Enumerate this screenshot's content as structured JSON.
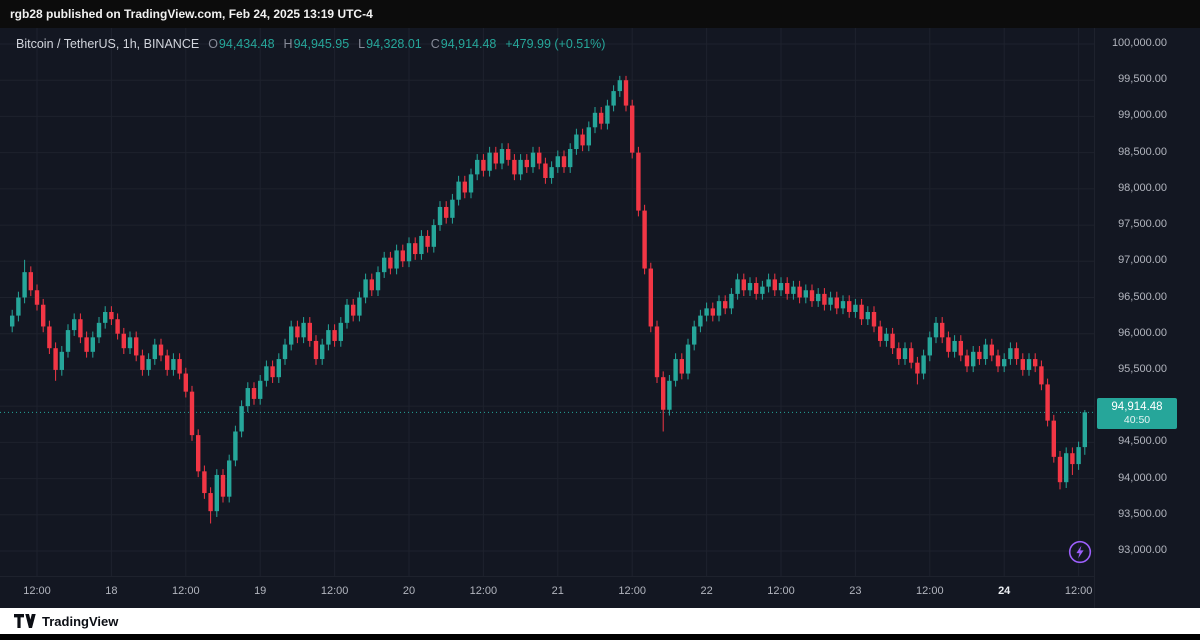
{
  "top_bar": {
    "text": "rgb28 published on TradingView.com, Feb 24, 2025 13:19 UTC-4"
  },
  "legend": {
    "title": "Bitcoin / TetherUS, 1h, BINANCE",
    "ohlc": [
      {
        "label": "O",
        "value": "94,434.48"
      },
      {
        "label": "H",
        "value": "94,945.95"
      },
      {
        "label": "L",
        "value": "94,328.01"
      },
      {
        "label": "C",
        "value": "94,914.48"
      }
    ],
    "change": "+479.99 (+0.51%)"
  },
  "price_label": {
    "price": "94,914.48",
    "countdown": "40:50"
  },
  "footer": {
    "brand": "TradingView"
  },
  "colors": {
    "up": "#26a69a",
    "down": "#f23645",
    "accent": "#26a69a",
    "bolt": "#9c5ffb",
    "grid": "#1e222d"
  },
  "chart_data": {
    "type": "candlestick",
    "title": "Bitcoin / TetherUS, 1h, BINANCE",
    "pair": "Bitcoin / TetherUS",
    "interval": "1h",
    "exchange": "BINANCE",
    "current_price": 94914.48,
    "last": {
      "o": 94434.48,
      "h": 94945.95,
      "l": 94328.01,
      "c": 94914.48,
      "change": "+479.99",
      "change_pct": "+0.51%"
    },
    "ylim": [
      92750,
      100250
    ],
    "y_ticks": [
      {
        "v": 100000,
        "label": "100,000.00"
      },
      {
        "v": 99500,
        "label": "99,500.00"
      },
      {
        "v": 99000,
        "label": "99,000.00"
      },
      {
        "v": 98500,
        "label": "98,500.00"
      },
      {
        "v": 98000,
        "label": "98,000.00"
      },
      {
        "v": 97500,
        "label": "97,500.00"
      },
      {
        "v": 97000,
        "label": "97,000.00"
      },
      {
        "v": 96500,
        "label": "96,500.00"
      },
      {
        "v": 96000,
        "label": "96,000.00"
      },
      {
        "v": 95500,
        "label": "95,500.00"
      },
      {
        "v": 95000,
        "label": "95,000.00"
      },
      {
        "v": 94500,
        "label": "94,500.00"
      },
      {
        "v": 94000,
        "label": "94,000.00"
      },
      {
        "v": 93500,
        "label": "93,500.00"
      },
      {
        "v": 93000,
        "label": "93,000.00"
      }
    ],
    "x_ticks": [
      {
        "i": 4,
        "label": "12:00",
        "bold": false
      },
      {
        "i": 16,
        "label": "18",
        "bold": false
      },
      {
        "i": 28,
        "label": "12:00",
        "bold": false
      },
      {
        "i": 40,
        "label": "19",
        "bold": false
      },
      {
        "i": 52,
        "label": "12:00",
        "bold": false
      },
      {
        "i": 64,
        "label": "20",
        "bold": false
      },
      {
        "i": 76,
        "label": "12:00",
        "bold": false
      },
      {
        "i": 88,
        "label": "21",
        "bold": false
      },
      {
        "i": 100,
        "label": "12:00",
        "bold": false
      },
      {
        "i": 112,
        "label": "22",
        "bold": false
      },
      {
        "i": 124,
        "label": "12:00",
        "bold": false
      },
      {
        "i": 136,
        "label": "23",
        "bold": false
      },
      {
        "i": 148,
        "label": "12:00",
        "bold": false
      },
      {
        "i": 160,
        "label": "24",
        "bold": true
      },
      {
        "i": 172,
        "label": "12:00",
        "bold": false
      }
    ],
    "candles": [
      [
        96100,
        96330,
        96020,
        96250
      ],
      [
        96250,
        96580,
        96170,
        96500
      ],
      [
        96500,
        97020,
        96420,
        96850
      ],
      [
        96850,
        96930,
        96520,
        96600
      ],
      [
        96600,
        96680,
        96320,
        96400
      ],
      [
        96400,
        96480,
        96020,
        96100
      ],
      [
        96100,
        96180,
        95720,
        95800
      ],
      [
        95800,
        95880,
        95350,
        95500
      ],
      [
        95500,
        95830,
        95420,
        95750
      ],
      [
        95750,
        96130,
        95670,
        96050
      ],
      [
        96050,
        96280,
        95970,
        96200
      ],
      [
        96200,
        96280,
        95870,
        95950
      ],
      [
        95950,
        96030,
        95670,
        95750
      ],
      [
        95750,
        96030,
        95670,
        95950
      ],
      [
        95950,
        96230,
        95870,
        96150
      ],
      [
        96150,
        96380,
        96070,
        96300
      ],
      [
        96300,
        96380,
        96120,
        96200
      ],
      [
        96200,
        96280,
        95920,
        96000
      ],
      [
        96000,
        96080,
        95720,
        95800
      ],
      [
        95800,
        96030,
        95720,
        95950
      ],
      [
        95950,
        96030,
        95620,
        95700
      ],
      [
        95700,
        95780,
        95420,
        95500
      ],
      [
        95500,
        95730,
        95420,
        95650
      ],
      [
        95650,
        95930,
        95570,
        95850
      ],
      [
        95850,
        95930,
        95620,
        95700
      ],
      [
        95700,
        95780,
        95420,
        95500
      ],
      [
        95500,
        95730,
        95420,
        95650
      ],
      [
        95650,
        95730,
        95370,
        95450
      ],
      [
        95450,
        95530,
        95120,
        95200
      ],
      [
        95200,
        95280,
        94520,
        94600
      ],
      [
        94600,
        94680,
        94020,
        94100
      ],
      [
        94100,
        94180,
        93720,
        93800
      ],
      [
        93800,
        93880,
        93380,
        93550
      ],
      [
        93550,
        94130,
        93470,
        94050
      ],
      [
        94050,
        94130,
        93670,
        93750
      ],
      [
        93750,
        94330,
        93670,
        94250
      ],
      [
        94250,
        94730,
        94170,
        94650
      ],
      [
        94650,
        95080,
        94570,
        95000
      ],
      [
        95000,
        95330,
        94920,
        95250
      ],
      [
        95250,
        95330,
        95020,
        95100
      ],
      [
        95100,
        95430,
        95020,
        95350
      ],
      [
        95350,
        95630,
        95270,
        95550
      ],
      [
        95550,
        95630,
        95320,
        95400
      ],
      [
        95400,
        95730,
        95320,
        95650
      ],
      [
        95650,
        95930,
        95570,
        95850
      ],
      [
        95850,
        96180,
        95770,
        96100
      ],
      [
        96100,
        96180,
        95870,
        95950
      ],
      [
        95950,
        96230,
        95870,
        96150
      ],
      [
        96150,
        96230,
        95820,
        95900
      ],
      [
        95900,
        95980,
        95570,
        95650
      ],
      [
        95650,
        95930,
        95570,
        95850
      ],
      [
        95850,
        96130,
        95770,
        96050
      ],
      [
        96050,
        96130,
        95820,
        95900
      ],
      [
        95900,
        96230,
        95820,
        96150
      ],
      [
        96150,
        96480,
        96070,
        96400
      ],
      [
        96400,
        96480,
        96170,
        96250
      ],
      [
        96250,
        96580,
        96170,
        96500
      ],
      [
        96500,
        96830,
        96420,
        96750
      ],
      [
        96750,
        96830,
        96520,
        96600
      ],
      [
        96600,
        96930,
        96520,
        96850
      ],
      [
        96850,
        97130,
        96770,
        97050
      ],
      [
        97050,
        97130,
        96820,
        96900
      ],
      [
        96900,
        97230,
        96820,
        97150
      ],
      [
        97150,
        97230,
        96920,
        97000
      ],
      [
        97000,
        97330,
        96920,
        97250
      ],
      [
        97250,
        97330,
        97020,
        97100
      ],
      [
        97100,
        97430,
        97020,
        97350
      ],
      [
        97350,
        97430,
        97120,
        97200
      ],
      [
        97200,
        97580,
        97120,
        97500
      ],
      [
        97500,
        97830,
        97420,
        97750
      ],
      [
        97750,
        97830,
        97520,
        97600
      ],
      [
        97600,
        97930,
        97520,
        97850
      ],
      [
        97850,
        98180,
        97770,
        98100
      ],
      [
        98100,
        98180,
        97870,
        97950
      ],
      [
        97950,
        98280,
        97870,
        98200
      ],
      [
        98200,
        98480,
        98120,
        98400
      ],
      [
        98400,
        98480,
        98170,
        98250
      ],
      [
        98250,
        98580,
        98170,
        98500
      ],
      [
        98500,
        98580,
        98270,
        98350
      ],
      [
        98350,
        98630,
        98270,
        98550
      ],
      [
        98550,
        98630,
        98320,
        98400
      ],
      [
        98400,
        98480,
        98120,
        98200
      ],
      [
        98200,
        98480,
        98120,
        98400
      ],
      [
        98400,
        98480,
        98220,
        98300
      ],
      [
        98300,
        98580,
        98220,
        98500
      ],
      [
        98500,
        98580,
        98270,
        98350
      ],
      [
        98350,
        98430,
        98070,
        98150
      ],
      [
        98150,
        98380,
        98070,
        98300
      ],
      [
        98300,
        98530,
        98220,
        98450
      ],
      [
        98450,
        98530,
        98220,
        98300
      ],
      [
        98300,
        98630,
        98220,
        98550
      ],
      [
        98550,
        98830,
        98470,
        98750
      ],
      [
        98750,
        98830,
        98520,
        98600
      ],
      [
        98600,
        98930,
        98520,
        98850
      ],
      [
        98850,
        99130,
        98770,
        99050
      ],
      [
        99050,
        99130,
        98820,
        98900
      ],
      [
        98900,
        99230,
        98820,
        99150
      ],
      [
        99150,
        99430,
        99070,
        99350
      ],
      [
        99350,
        99560,
        99270,
        99500
      ],
      [
        99500,
        99560,
        99070,
        99150
      ],
      [
        99150,
        99230,
        98420,
        98500
      ],
      [
        98500,
        98580,
        97620,
        97700
      ],
      [
        97700,
        97780,
        96820,
        96900
      ],
      [
        96900,
        96980,
        96020,
        96100
      ],
      [
        96100,
        96180,
        95320,
        95400
      ],
      [
        95400,
        95480,
        94650,
        94950
      ],
      [
        94950,
        95430,
        94870,
        95350
      ],
      [
        95350,
        95730,
        95270,
        95650
      ],
      [
        95650,
        95730,
        95370,
        95450
      ],
      [
        95450,
        95930,
        95370,
        95850
      ],
      [
        95850,
        96180,
        95770,
        96100
      ],
      [
        96100,
        96330,
        96020,
        96250
      ],
      [
        96250,
        96430,
        96170,
        96350
      ],
      [
        96350,
        96430,
        96170,
        96250
      ],
      [
        96250,
        96530,
        96170,
        96450
      ],
      [
        96450,
        96530,
        96270,
        96350
      ],
      [
        96350,
        96630,
        96270,
        96550
      ],
      [
        96550,
        96830,
        96470,
        96750
      ],
      [
        96750,
        96830,
        96520,
        96600
      ],
      [
        96600,
        96780,
        96520,
        96700
      ],
      [
        96700,
        96780,
        96470,
        96550
      ],
      [
        96550,
        96730,
        96470,
        96650
      ],
      [
        96650,
        96830,
        96570,
        96750
      ],
      [
        96750,
        96830,
        96520,
        96600
      ],
      [
        96600,
        96780,
        96520,
        96700
      ],
      [
        96700,
        96780,
        96470,
        96550
      ],
      [
        96550,
        96730,
        96470,
        96650
      ],
      [
        96650,
        96730,
        96420,
        96500
      ],
      [
        96500,
        96680,
        96420,
        96600
      ],
      [
        96600,
        96680,
        96370,
        96450
      ],
      [
        96450,
        96630,
        96370,
        96550
      ],
      [
        96550,
        96630,
        96320,
        96400
      ],
      [
        96400,
        96580,
        96320,
        96500
      ],
      [
        96500,
        96580,
        96270,
        96350
      ],
      [
        96350,
        96530,
        96270,
        96450
      ],
      [
        96450,
        96530,
        96220,
        96300
      ],
      [
        96300,
        96480,
        96220,
        96400
      ],
      [
        96400,
        96480,
        96120,
        96200
      ],
      [
        96200,
        96380,
        96120,
        96300
      ],
      [
        96300,
        96380,
        96020,
        96100
      ],
      [
        96100,
        96180,
        95820,
        95900
      ],
      [
        95900,
        96080,
        95820,
        96000
      ],
      [
        96000,
        96080,
        95720,
        95800
      ],
      [
        95800,
        95880,
        95570,
        95650
      ],
      [
        95650,
        95880,
        95570,
        95800
      ],
      [
        95800,
        95880,
        95520,
        95600
      ],
      [
        95600,
        95680,
        95300,
        95450
      ],
      [
        95450,
        95780,
        95370,
        95700
      ],
      [
        95700,
        96030,
        95620,
        95950
      ],
      [
        95950,
        96230,
        95870,
        96150
      ],
      [
        96150,
        96230,
        95870,
        95950
      ],
      [
        95950,
        96030,
        95670,
        95750
      ],
      [
        95750,
        95980,
        95670,
        95900
      ],
      [
        95900,
        95980,
        95620,
        95700
      ],
      [
        95700,
        95780,
        95470,
        95550
      ],
      [
        95550,
        95830,
        95470,
        95750
      ],
      [
        95750,
        95830,
        95570,
        95650
      ],
      [
        95650,
        95930,
        95570,
        95850
      ],
      [
        95850,
        95930,
        95620,
        95700
      ],
      [
        95700,
        95780,
        95470,
        95550
      ],
      [
        95550,
        95730,
        95470,
        95650
      ],
      [
        95650,
        95880,
        95570,
        95800
      ],
      [
        95800,
        95880,
        95570,
        95650
      ],
      [
        95650,
        95730,
        95420,
        95500
      ],
      [
        95500,
        95730,
        95420,
        95650
      ],
      [
        95650,
        95730,
        95470,
        95550
      ],
      [
        95550,
        95630,
        95220,
        95300
      ],
      [
        95300,
        95380,
        94720,
        94800
      ],
      [
        94800,
        94880,
        94220,
        94300
      ],
      [
        94300,
        94380,
        93850,
        93950
      ],
      [
        93950,
        94430,
        93870,
        94350
      ],
      [
        94350,
        94430,
        94050,
        94200
      ],
      [
        94200,
        94510,
        94120,
        94434.48
      ],
      [
        94434.48,
        94945.95,
        94328.01,
        94914.48
      ]
    ]
  }
}
